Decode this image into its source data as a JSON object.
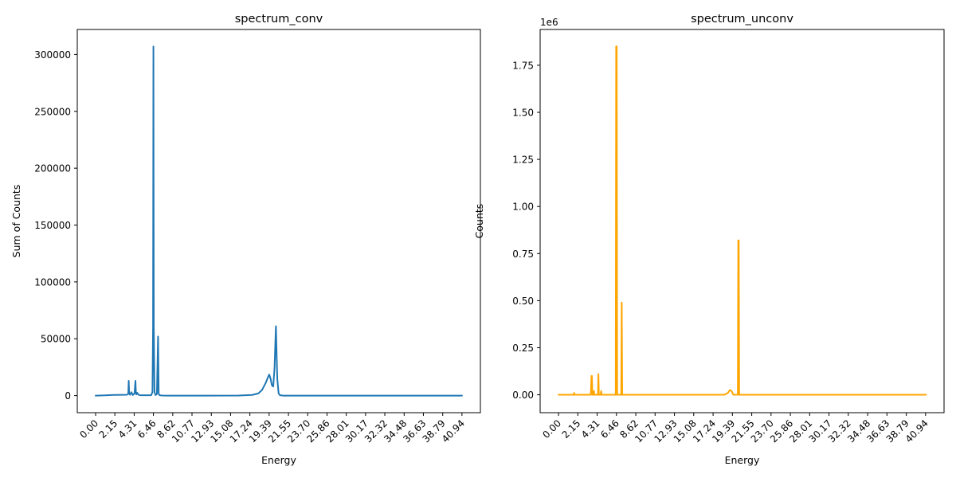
{
  "chart_data": [
    {
      "type": "line",
      "title": "spectrum_conv",
      "xlabel": "Energy",
      "ylabel": "Sum of Counts",
      "offset_text": "",
      "color": "#1f77b4",
      "xlim": [
        -2.05,
        43.0
      ],
      "ylim": [
        -15000,
        322000
      ],
      "grid": false,
      "x_ticks": [
        0.0,
        2.15,
        4.31,
        6.46,
        8.62,
        10.77,
        12.93,
        15.08,
        17.24,
        19.39,
        21.55,
        23.7,
        25.86,
        28.01,
        30.17,
        32.32,
        34.48,
        36.63,
        38.79,
        40.94
      ],
      "x_tick_labels": [
        "0.00",
        "2.15",
        "4.31",
        "6.46",
        "8.62",
        "10.77",
        "12.93",
        "15.08",
        "17.24",
        "19.39",
        "21.55",
        "23.70",
        "25.86",
        "28.01",
        "30.17",
        "32.32",
        "34.48",
        "36.63",
        "38.79",
        "40.94"
      ],
      "y_ticks": [
        0,
        50000,
        100000,
        150000,
        200000,
        250000,
        300000
      ],
      "y_tick_labels": [
        "0",
        "50000",
        "100000",
        "150000",
        "200000",
        "250000",
        "300000"
      ],
      "series": [
        {
          "x": [
            0.0,
            1.0,
            2.0,
            3.0,
            3.5,
            3.65,
            3.7,
            3.75,
            3.85,
            4.0,
            4.15,
            4.35,
            4.45,
            4.5,
            4.55,
            4.65,
            4.8,
            5.0,
            6.2,
            6.35,
            6.42,
            6.46,
            6.5,
            6.58,
            6.7,
            6.85,
            6.98,
            7.05,
            7.12,
            7.25,
            7.45,
            8.0,
            12.0,
            16.0,
            17.5,
            18.2,
            18.6,
            19.0,
            19.2,
            19.4,
            19.55,
            19.7,
            19.85,
            20.0,
            20.1,
            20.15,
            20.2,
            20.3,
            20.45,
            20.6,
            21.0,
            25.0,
            30.0,
            35.0,
            40.94
          ],
          "y": [
            0,
            200,
            600,
            700,
            800,
            1500,
            13000,
            1500,
            800,
            3000,
            500,
            2000,
            13000,
            3000,
            1000,
            2500,
            700,
            300,
            300,
            3000,
            60000,
            307000,
            60000,
            3000,
            500,
            1500,
            52000,
            1500,
            500,
            200,
            100,
            0,
            0,
            100,
            600,
            2000,
            5000,
            11000,
            15000,
            18500,
            15000,
            9000,
            8000,
            25000,
            50000,
            61000,
            45000,
            15000,
            2000,
            300,
            0,
            0,
            0,
            0,
            0
          ]
        }
      ]
    },
    {
      "type": "line",
      "title": "spectrum_unconv",
      "xlabel": "Energy",
      "ylabel": "Counts",
      "offset_text": "1e6",
      "color": "#ffa500",
      "xlim": [
        -2.05,
        43.0
      ],
      "ylim": [
        -0.095,
        1.94
      ],
      "grid": false,
      "x_ticks": [
        0.0,
        2.15,
        4.31,
        6.46,
        8.62,
        10.77,
        12.93,
        15.08,
        17.24,
        19.39,
        21.55,
        23.7,
        25.86,
        28.01,
        30.17,
        32.32,
        34.48,
        36.63,
        38.79,
        40.94
      ],
      "x_tick_labels": [
        "0.00",
        "2.15",
        "4.31",
        "6.46",
        "8.62",
        "10.77",
        "12.93",
        "15.08",
        "17.24",
        "19.39",
        "21.55",
        "23.70",
        "25.86",
        "28.01",
        "30.17",
        "32.32",
        "34.48",
        "36.63",
        "38.79",
        "40.94"
      ],
      "y_ticks": [
        0.0,
        0.25,
        0.5,
        0.75,
        1.0,
        1.25,
        1.5,
        1.75
      ],
      "y_tick_labels": [
        "0.00",
        "0.25",
        "0.50",
        "0.75",
        "1.00",
        "1.25",
        "1.50",
        "1.75"
      ],
      "series": [
        {
          "x": [
            0.0,
            1.7,
            1.75,
            1.8,
            3.6,
            3.68,
            3.72,
            3.78,
            3.9,
            3.95,
            4.0,
            4.1,
            4.4,
            4.45,
            4.5,
            4.7,
            4.75,
            4.8,
            6.38,
            6.43,
            6.46,
            6.49,
            6.54,
            7.0,
            7.05,
            7.1,
            18.5,
            18.9,
            19.1,
            19.3,
            19.5,
            20.0,
            20.05,
            20.1,
            20.15,
            21.0,
            41.0
          ],
          "y": [
            0.0,
            0.0,
            0.01,
            0.0,
            0.0,
            0.1,
            0.1,
            0.0,
            0.0,
            0.02,
            0.0,
            0.0,
            0.0,
            0.11,
            0.0,
            0.0,
            0.02,
            0.0,
            0.0,
            1.85,
            1.85,
            1.85,
            0.0,
            0.0,
            0.49,
            0.0,
            0.0,
            0.01,
            0.025,
            0.02,
            0.0,
            0.0,
            0.82,
            0.82,
            0.0,
            0.0,
            0.0
          ]
        }
      ]
    }
  ]
}
